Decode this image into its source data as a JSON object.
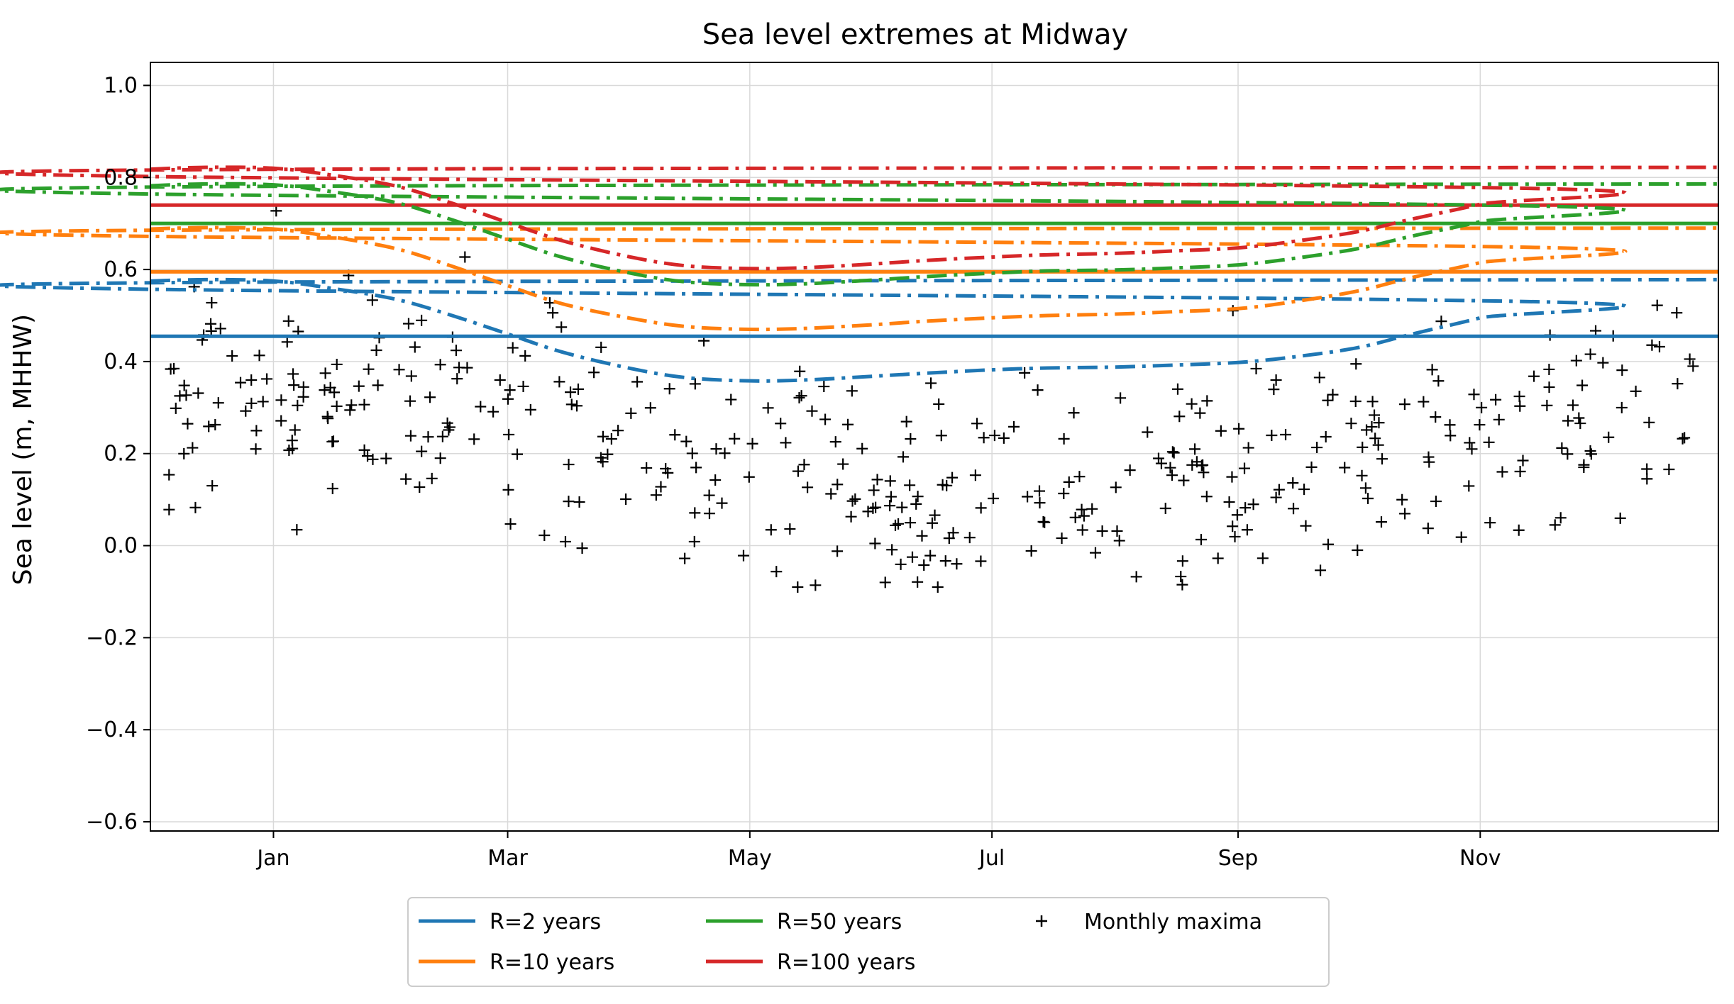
{
  "chart_data": {
    "type": "line",
    "title": "Sea level extremes at Midway",
    "xlabel": "",
    "ylabel": "Sea level (m, MHHW)",
    "xlim": [
      "Dec 1",
      "Dec 31"
    ],
    "ylim": [
      -0.62,
      1.05
    ],
    "grid": true,
    "legend_placement": "bottom-center",
    "x_ticks": [
      {
        "label": "Jan",
        "date": "Jan 1"
      },
      {
        "label": "Mar",
        "date": "Mar 1"
      },
      {
        "label": "May",
        "date": "May 1"
      },
      {
        "label": "Jul",
        "date": "Jul 1"
      },
      {
        "label": "Sep",
        "date": "Sep 1"
      },
      {
        "label": "Nov",
        "date": "Nov 1"
      }
    ],
    "y_ticks": [
      "1.0",
      "0.8",
      "0.6",
      "0.4",
      "0.2",
      "0.0",
      "−0.2",
      "−0.4",
      "−0.6"
    ],
    "y_tick_values": [
      1.0,
      0.8,
      0.6,
      0.4,
      0.2,
      0.0,
      -0.2,
      -0.4,
      -0.6
    ],
    "x_date_points": [
      "Dec 1",
      "Dec 15",
      "Jan 1",
      "Jan 15",
      "Feb 1",
      "Feb 15",
      "Mar 1",
      "Mar 15",
      "Apr 1",
      "Apr 15",
      "May 1",
      "May 15",
      "Jun 1",
      "Jun 15",
      "Jul 1",
      "Jul 15",
      "Aug 1",
      "Aug 15",
      "Sep 1",
      "Sep 15",
      "Oct 1",
      "Oct 15",
      "Nov 1",
      "Nov 15",
      "Dec 1",
      "Dec 15",
      "Dec 31"
    ],
    "series": [
      {
        "name": "R=2 years",
        "color": "#1f77b4",
        "kind": "stationary",
        "value": 0.455
      },
      {
        "name": "R=10 years",
        "color": "#ff7f0e",
        "kind": "stationary",
        "value": 0.595
      },
      {
        "name": "R=50 years",
        "color": "#2ca02c",
        "kind": "stationary",
        "value": 0.7
      },
      {
        "name": "R=100 years",
        "color": "#d62728",
        "kind": "stationary",
        "value": 0.74
      },
      {
        "color": "#1f77b4",
        "kind": "seasonal",
        "values": [
          0.575,
          0.578,
          0.575,
          0.56,
          0.535,
          0.5,
          0.46,
          0.42,
          0.385,
          0.365,
          0.358,
          0.36,
          0.368,
          0.375,
          0.382,
          0.386,
          0.388,
          0.392,
          0.398,
          0.41,
          0.43,
          0.46,
          0.495,
          0.53,
          0.557,
          0.572,
          0.578
        ]
      },
      {
        "color": "#ff7f0e",
        "kind": "seasonal",
        "values": [
          0.688,
          0.691,
          0.688,
          0.672,
          0.645,
          0.607,
          0.565,
          0.525,
          0.494,
          0.476,
          0.47,
          0.472,
          0.48,
          0.488,
          0.495,
          0.5,
          0.503,
          0.508,
          0.515,
          0.53,
          0.553,
          0.583,
          0.615,
          0.648,
          0.672,
          0.686,
          0.69
        ]
      },
      {
        "color": "#2ca02c",
        "kind": "seasonal",
        "values": [
          0.782,
          0.786,
          0.784,
          0.77,
          0.745,
          0.708,
          0.666,
          0.626,
          0.592,
          0.573,
          0.567,
          0.569,
          0.577,
          0.585,
          0.592,
          0.597,
          0.599,
          0.603,
          0.61,
          0.624,
          0.645,
          0.673,
          0.704,
          0.738,
          0.764,
          0.78,
          0.786
        ]
      },
      {
        "color": "#d62728",
        "kind": "seasonal",
        "values": [
          0.818,
          0.822,
          0.82,
          0.806,
          0.781,
          0.744,
          0.702,
          0.662,
          0.627,
          0.608,
          0.602,
          0.604,
          0.612,
          0.62,
          0.627,
          0.632,
          0.635,
          0.64,
          0.647,
          0.661,
          0.682,
          0.71,
          0.742,
          0.776,
          0.802,
          0.817,
          0.822
        ]
      },
      {
        "name": "Monthly maxima",
        "color": "#000000",
        "kind": "scatter",
        "marker": "+",
        "point_count": 420,
        "y_range": [
          -0.09,
          0.75
        ]
      }
    ],
    "legend": [
      "R=2 years",
      "R=10 years",
      "R=50 years",
      "R=100 years",
      "Monthly maxima"
    ]
  }
}
